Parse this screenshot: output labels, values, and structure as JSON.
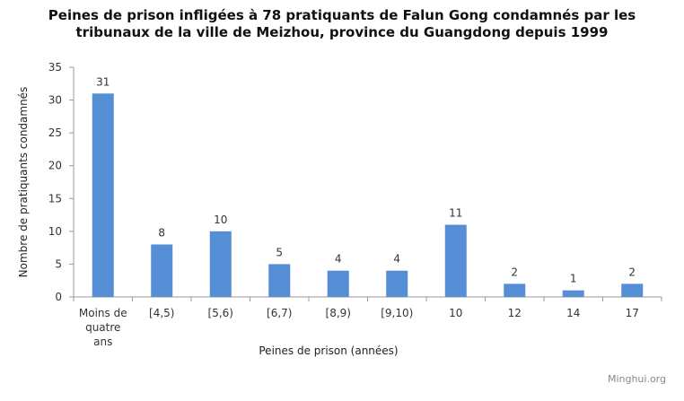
{
  "chart_data": {
    "type": "bar",
    "title": [
      "Peines de prison infligées  à 78 pratiquants de Falun Gong condamnés par les",
      "tribunaux de la ville de Meizhou, province du Guangdong depuis 1999"
    ],
    "categories": [
      [
        "Moins de",
        "quatre",
        "ans"
      ],
      [
        "[4,5)"
      ],
      [
        "[5,6)"
      ],
      [
        "[6,7)"
      ],
      [
        "[8,9)"
      ],
      [
        "[9,10)"
      ],
      [
        "10"
      ],
      [
        "12"
      ],
      [
        "14"
      ],
      [
        "17"
      ]
    ],
    "values": [
      31,
      8,
      10,
      5,
      4,
      4,
      11,
      2,
      1,
      2
    ],
    "xlabel": "Peines de prison (années)",
    "ylabel": "Nombre  de pratiquants condamnés",
    "ylim": [
      0,
      35
    ],
    "yticks": [
      0,
      5,
      10,
      15,
      20,
      25,
      30,
      35
    ],
    "bar_color": "#558ED5",
    "grid": false,
    "legend": "none"
  },
  "watermark": "Minghui.org"
}
